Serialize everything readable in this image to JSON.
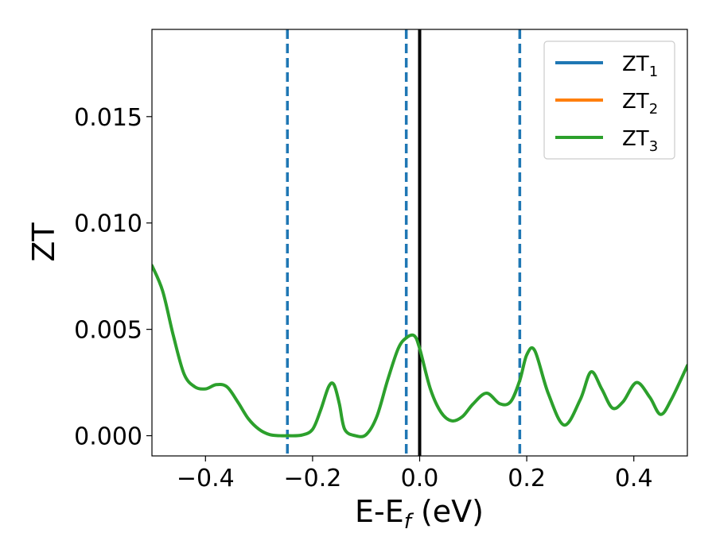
{
  "chart_data": {
    "type": "line",
    "xlabel": {
      "main": "E-E",
      "sub": "f",
      "unit": " (eV)"
    },
    "ylabel": "ZT",
    "xlim": [
      -0.5,
      0.5
    ],
    "ylim": [
      -0.00095,
      0.0191
    ],
    "xticks": [
      -0.4,
      -0.2,
      0.0,
      0.2,
      0.4
    ],
    "xtick_labels": [
      "−0.4",
      "−0.2",
      "0.0",
      "0.2",
      "0.4"
    ],
    "yticks": [
      0.0,
      0.005,
      0.01,
      0.015
    ],
    "ytick_labels": [
      "0.000",
      "0.005",
      "0.010",
      "0.015"
    ],
    "legend_position": "top-right",
    "legend": [
      {
        "main": "ZT",
        "sub": "1",
        "color": "#1f77b4"
      },
      {
        "main": "ZT",
        "sub": "2",
        "color": "#ff7f0e"
      },
      {
        "main": "ZT",
        "sub": "3",
        "color": "#2ca02c"
      }
    ],
    "vertical_lines": [
      {
        "x": -0.247,
        "style": "dashed",
        "color": "#1f77b4"
      },
      {
        "x": -0.025,
        "style": "dashed",
        "color": "#1f77b4"
      },
      {
        "x": 0.0,
        "style": "solid",
        "color": "#000000"
      },
      {
        "x": 0.187,
        "style": "dashed",
        "color": "#1f77b4"
      }
    ],
    "series": [
      {
        "color": "#1f77b4",
        "visible_under": "ZT3"
      },
      {
        "color": "#ff7f0e",
        "visible_under": "ZT3"
      },
      {
        "color": "#2ca02c",
        "x": [
          -0.5,
          -0.48,
          -0.46,
          -0.44,
          -0.42,
          -0.4,
          -0.38,
          -0.36,
          -0.34,
          -0.32,
          -0.3,
          -0.28,
          -0.26,
          -0.247,
          -0.22,
          -0.2,
          -0.185,
          -0.17,
          -0.16,
          -0.15,
          -0.14,
          -0.12,
          -0.1,
          -0.08,
          -0.06,
          -0.04,
          -0.025,
          -0.01,
          0.0,
          0.02,
          0.04,
          0.06,
          0.08,
          0.1,
          0.125,
          0.15,
          0.17,
          0.187,
          0.2,
          0.215,
          0.24,
          0.27,
          0.3,
          0.32,
          0.34,
          0.36,
          0.38,
          0.405,
          0.43,
          0.45,
          0.47,
          0.5
        ],
        "y": [
          0.008,
          0.0068,
          0.0047,
          0.0029,
          0.0023,
          0.0022,
          0.0024,
          0.0023,
          0.0016,
          0.0008,
          0.0003,
          5e-05,
          0.0,
          0.0,
          3e-05,
          0.0003,
          0.0012,
          0.0023,
          0.0024,
          0.0015,
          0.0003,
          0.0,
          5e-05,
          0.0009,
          0.0026,
          0.0041,
          0.0046,
          0.0047,
          0.0041,
          0.0022,
          0.0011,
          0.0007,
          0.0009,
          0.0015,
          0.002,
          0.0015,
          0.0016,
          0.0026,
          0.0038,
          0.004,
          0.002,
          0.0005,
          0.0017,
          0.003,
          0.0022,
          0.0013,
          0.0016,
          0.0025,
          0.0018,
          0.001,
          0.0017,
          0.0033
        ]
      }
    ]
  }
}
